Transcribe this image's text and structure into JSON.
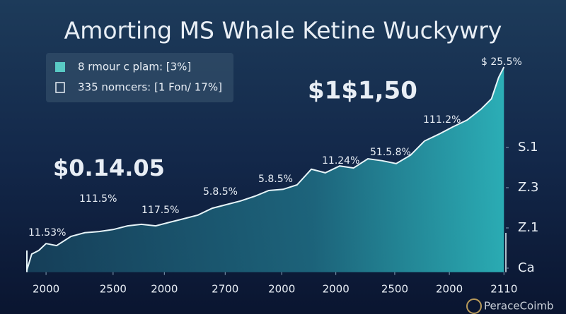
{
  "chart_data": {
    "type": "area",
    "title": "Amorting MS Whale Ketine Wuckywry",
    "legend": [
      "8 rmour c plam: [3%]",
      "335 nomcers: [1 Fon/ 17%]"
    ],
    "callouts": [
      "$1$1,50",
      "$0.14.05"
    ],
    "annotations": [
      "11.53%",
      "111.5%",
      "117.5%",
      "5.8.5%",
      "5.8.5%",
      "11.24%",
      "51.5.8%",
      "111.2%",
      "$ 25.5%"
    ],
    "watermark": "PeraceCoimb",
    "series": [
      {
        "color": "#2fc4c8",
        "x": [
          0,
          1,
          2.5,
          4,
          6.2,
          9.2,
          12.1,
          15.1,
          18,
          21,
          23.9,
          26.9,
          29.8,
          32.8,
          35.7,
          38.7,
          41.7,
          44.6,
          47.6,
          50.5,
          53.5,
          56.4,
          59.4,
          62.3,
          65.3,
          68.2,
          71.2,
          74.2,
          77.1,
          80.1,
          83,
          86,
          88.9,
          91.9,
          94.8,
          97,
          98.5,
          99.6
        ],
        "values": [
          -0.05,
          0.35,
          0.44,
          0.61,
          0.56,
          0.79,
          0.88,
          0.91,
          0.96,
          1.05,
          1.09,
          1.05,
          1.14,
          1.23,
          1.32,
          1.49,
          1.58,
          1.67,
          1.79,
          1.93,
          1.96,
          2.07,
          2.46,
          2.37,
          2.54,
          2.49,
          2.72,
          2.67,
          2.6,
          2.81,
          3.16,
          3.33,
          3.51,
          3.68,
          3.95,
          4.21,
          4.74,
          5.0
        ]
      }
    ],
    "xlim": [
      0,
      100
    ],
    "xticks": [
      {
        "value": 4,
        "label": "2000"
      },
      {
        "value": 18,
        "label": "2500"
      },
      {
        "value": 28.7,
        "label": "2000"
      },
      {
        "value": 41.4,
        "label": "2700"
      },
      {
        "value": 53.2,
        "label": "2000"
      },
      {
        "value": 64.5,
        "label": "2000"
      },
      {
        "value": 76.8,
        "label": "2500"
      },
      {
        "value": 88.2,
        "label": "2000"
      },
      {
        "value": 99.6,
        "label": "2110"
      }
    ],
    "ylim": [
      -0.1,
      5.5
    ],
    "yticks": [
      {
        "value": 0,
        "label": "Ca"
      },
      {
        "value": 1,
        "label": "Z.1"
      },
      {
        "value": 2,
        "label": "Z.3"
      },
      {
        "value": 3,
        "label": "S.1"
      }
    ]
  }
}
